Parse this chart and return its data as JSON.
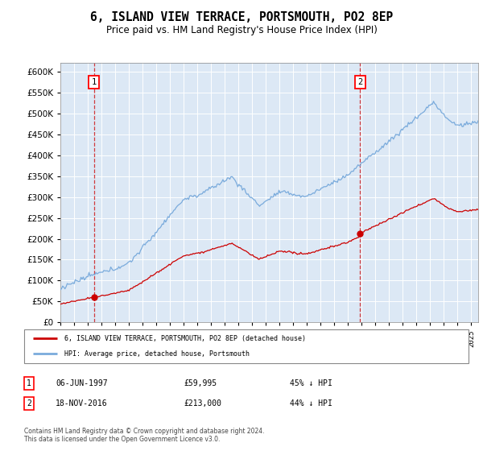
{
  "title": "6, ISLAND VIEW TERRACE, PORTSMOUTH, PO2 8EP",
  "subtitle": "Price paid vs. HM Land Registry's House Price Index (HPI)",
  "legend_line1": "6, ISLAND VIEW TERRACE, PORTSMOUTH, PO2 8EP (detached house)",
  "legend_line2": "HPI: Average price, detached house, Portsmouth",
  "annotation1": {
    "label": "1",
    "date_str": "06-JUN-1997",
    "price_str": "£59,995",
    "hpi_str": "45% ↓ HPI",
    "year": 1997.44,
    "price": 59995
  },
  "annotation2": {
    "label": "2",
    "date_str": "18-NOV-2016",
    "price_str": "£213,000",
    "hpi_str": "44% ↓ HPI",
    "year": 2016.88,
    "price": 213000
  },
  "hpi_color": "#7aabdc",
  "price_color": "#cc0000",
  "plot_bg_color": "#dce8f5",
  "footer": "Contains HM Land Registry data © Crown copyright and database right 2024.\nThis data is licensed under the Open Government Licence v3.0.",
  "ylim": [
    0,
    620000
  ],
  "xlim": [
    1995.0,
    2025.5
  ]
}
